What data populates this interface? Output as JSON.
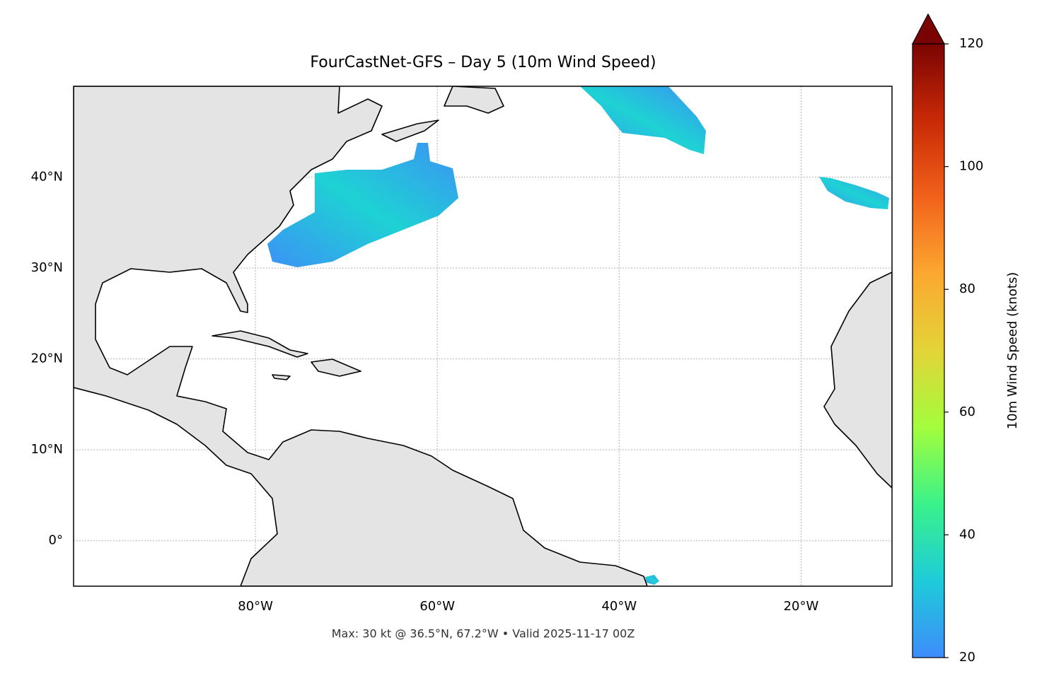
{
  "chart_data": {
    "type": "map",
    "title": "FourCastNet-GFS – Day 5 (10m Wind Speed)",
    "note": "Max: 30 kt @ 36.5°N, 67.2°W • Valid 2025-11-17 00Z",
    "xlim": [
      -100,
      -10
    ],
    "ylim": [
      -5,
      50
    ],
    "xticks": [
      {
        "value": -80,
        "label": "80°W"
      },
      {
        "value": -60,
        "label": "60°W"
      },
      {
        "value": -40,
        "label": "40°W"
      },
      {
        "value": -20,
        "label": "20°W"
      }
    ],
    "yticks": [
      {
        "value": 0,
        "label": "0°"
      },
      {
        "value": 10,
        "label": "10°N"
      },
      {
        "value": 20,
        "label": "20°N"
      },
      {
        "value": 30,
        "label": "30°N"
      },
      {
        "value": 40,
        "label": "40°N"
      }
    ],
    "grid": true,
    "colorbar": {
      "label": "10m Wind Speed (knots)",
      "lim": [
        20,
        120
      ],
      "ticks": [
        20,
        40,
        60,
        80,
        100,
        120
      ],
      "colors": [
        "#3e8cfb",
        "#1ecbd9",
        "#3af28a",
        "#a3fd3c",
        "#e3d438",
        "#fca830",
        "#f2621b",
        "#c92a06",
        "#7a0403"
      ],
      "extend": "max"
    }
  }
}
